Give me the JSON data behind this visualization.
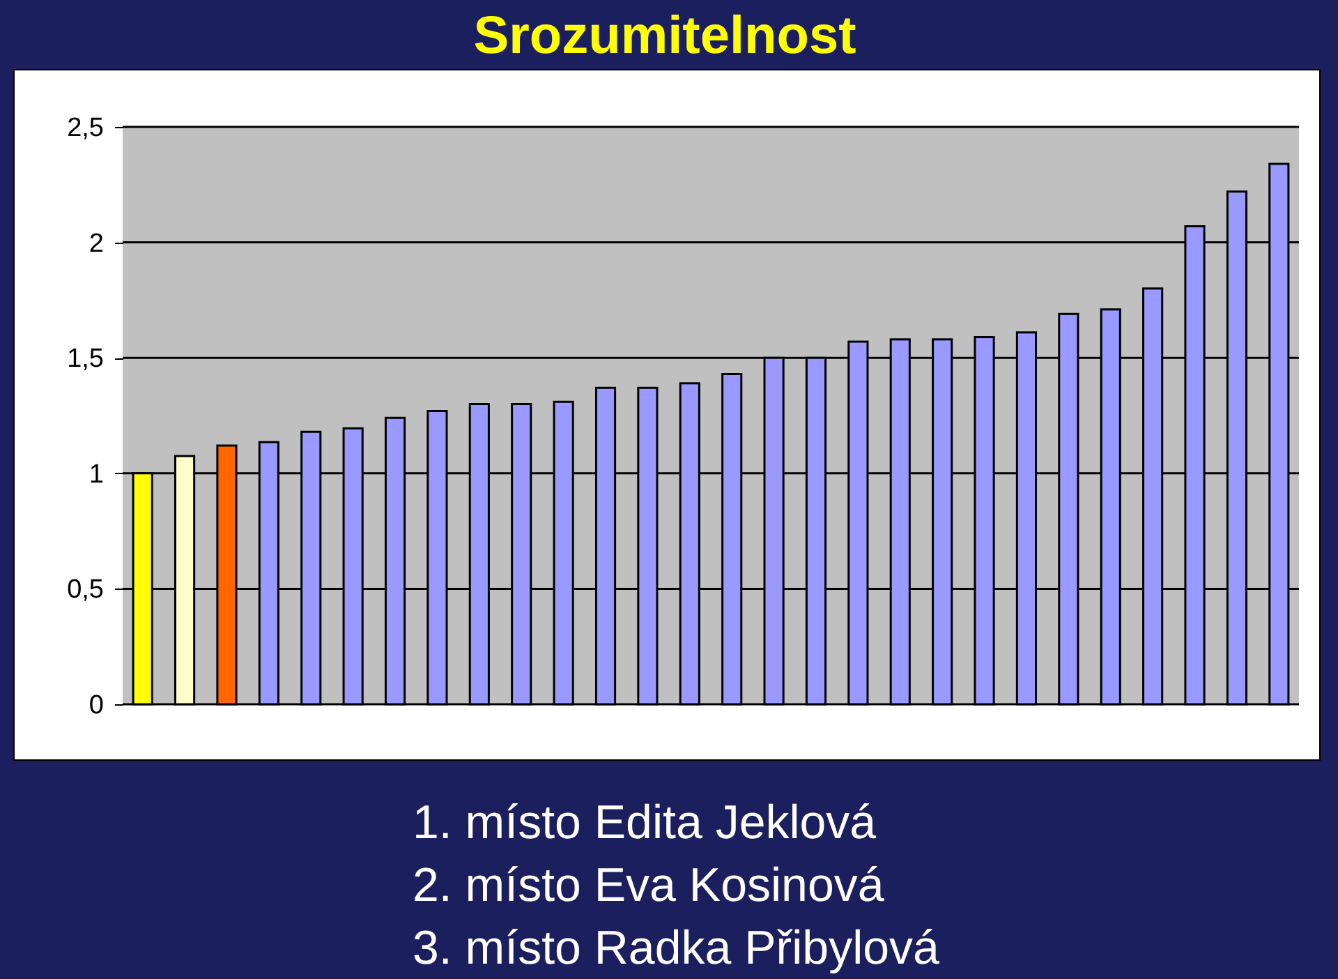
{
  "chart_data": {
    "type": "bar",
    "title": "Srozumitelnost",
    "categories": [
      null,
      null,
      null,
      null,
      null,
      null,
      null,
      null,
      null,
      null,
      null,
      null,
      null,
      null,
      null,
      null,
      null,
      null,
      null,
      null,
      null,
      null,
      null,
      null,
      null,
      null,
      null,
      null
    ],
    "values": [
      1.0,
      1.075,
      1.12,
      1.135,
      1.18,
      1.195,
      1.24,
      1.27,
      1.3,
      1.3,
      1.31,
      1.37,
      1.37,
      1.39,
      1.43,
      1.5,
      1.5,
      1.57,
      1.58,
      1.58,
      1.59,
      1.61,
      1.69,
      1.71,
      1.8,
      2.07,
      2.22,
      2.34
    ],
    "colors": [
      "#ffff00",
      "#ffffcc",
      "#ff6600",
      "#9999ff",
      "#9999ff",
      "#9999ff",
      "#9999ff",
      "#9999ff",
      "#9999ff",
      "#9999ff",
      "#9999ff",
      "#9999ff",
      "#9999ff",
      "#9999ff",
      "#9999ff",
      "#9999ff",
      "#9999ff",
      "#9999ff",
      "#9999ff",
      "#9999ff",
      "#9999ff",
      "#9999ff",
      "#9999ff",
      "#9999ff",
      "#9999ff",
      "#9999ff",
      "#9999ff",
      "#9999ff"
    ],
    "ylim": [
      0,
      2.5
    ],
    "yticks": [
      0,
      {
        "value": 0.5,
        "label": "0,5"
      },
      1,
      {
        "value": 1.5,
        "label": "1,5"
      },
      2,
      {
        "value": 2.5,
        "label": "2,5"
      }
    ],
    "grid": "y",
    "annotations": [
      "1. místo Edita Jeklová",
      "2. místo Eva Kosinová",
      "3. místo Radka Přibylová"
    ]
  }
}
